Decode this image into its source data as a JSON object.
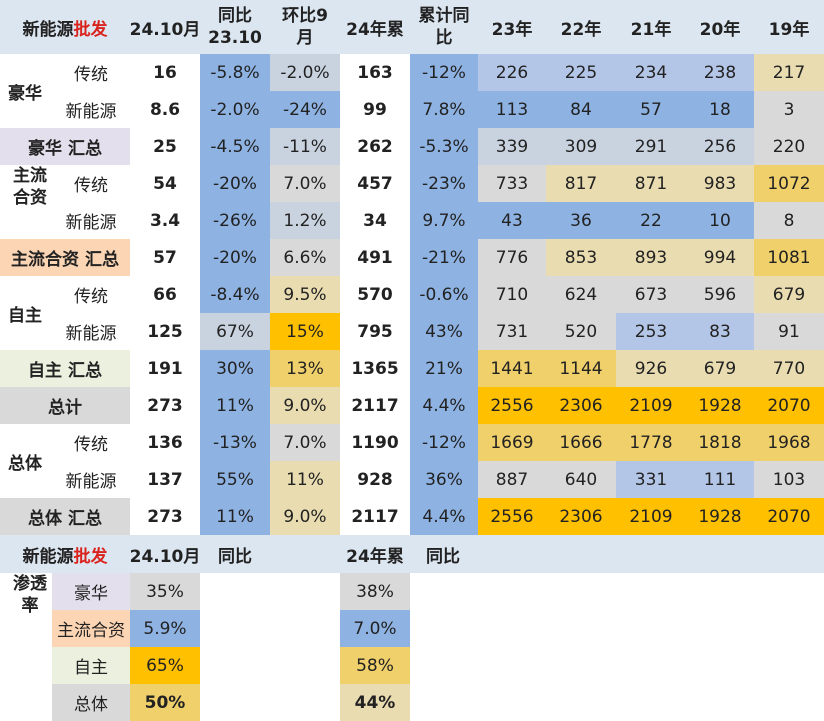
{
  "header": {
    "title_prefix": "新能源",
    "title_suffix": "批发",
    "columns": [
      "24.10月",
      "同比\n23.10",
      "环比9\n月",
      "24年累",
      "累计同\n比",
      "23年",
      "22年",
      "21年",
      "20年",
      "19年"
    ]
  },
  "rows": [
    {
      "group": "豪华",
      "sub": "传统",
      "vals": [
        "16",
        "-5.8%",
        "-2.0%",
        "163",
        "-12%",
        "226",
        "225",
        "234",
        "238",
        "217"
      ]
    },
    {
      "group": "",
      "sub": "新能源",
      "vals": [
        "8.6",
        "-2.0%",
        "-24%",
        "99",
        "7.8%",
        "113",
        "84",
        "57",
        "18",
        "3"
      ]
    },
    {
      "label": "豪华 汇总",
      "vals": [
        "25",
        "-4.5%",
        "-11%",
        "262",
        "-5.3%",
        "339",
        "309",
        "291",
        "256",
        "220"
      ]
    },
    {
      "group": "主流\n合资",
      "sub": "传统",
      "vals": [
        "54",
        "-20%",
        "7.0%",
        "457",
        "-23%",
        "733",
        "817",
        "871",
        "983",
        "1072"
      ]
    },
    {
      "group": "",
      "sub": "新能源",
      "vals": [
        "3.4",
        "-26%",
        "1.2%",
        "34",
        "9.7%",
        "43",
        "36",
        "22",
        "10",
        "8"
      ]
    },
    {
      "label": "主流合资 汇总",
      "vals": [
        "57",
        "-20%",
        "6.6%",
        "491",
        "-21%",
        "776",
        "853",
        "893",
        "994",
        "1081"
      ]
    },
    {
      "group": "自主",
      "sub": "传统",
      "vals": [
        "66",
        "-8.4%",
        "9.5%",
        "570",
        "-0.6%",
        "710",
        "624",
        "673",
        "596",
        "679"
      ]
    },
    {
      "group": "",
      "sub": "新能源",
      "vals": [
        "125",
        "67%",
        "15%",
        "795",
        "43%",
        "731",
        "520",
        "253",
        "83",
        "91"
      ]
    },
    {
      "label": "自主 汇总",
      "vals": [
        "191",
        "30%",
        "13%",
        "1365",
        "21%",
        "1441",
        "1144",
        "926",
        "679",
        "770"
      ]
    },
    {
      "label": "总计",
      "vals": [
        "273",
        "11%",
        "9.0%",
        "2117",
        "4.4%",
        "2556",
        "2306",
        "2109",
        "1928",
        "2070"
      ]
    },
    {
      "group": "总体",
      "sub": "传统",
      "vals": [
        "136",
        "-13%",
        "7.0%",
        "1190",
        "-12%",
        "1669",
        "1666",
        "1778",
        "1818",
        "1968"
      ]
    },
    {
      "group": "",
      "sub": "新能源",
      "vals": [
        "137",
        "55%",
        "11%",
        "928",
        "36%",
        "887",
        "640",
        "331",
        "111",
        "103"
      ]
    },
    {
      "label": "总体 汇总",
      "vals": [
        "273",
        "11%",
        "9.0%",
        "2117",
        "4.4%",
        "2556",
        "2306",
        "2109",
        "1928",
        "2070"
      ]
    }
  ],
  "penetration": {
    "title_prefix": "新能源",
    "title_suffix": "批发",
    "col_month": "24.10月",
    "col_yoy": "同比",
    "col_ytd": "24年累",
    "col_ytd_yoy": "同比",
    "label": "渗透\n率",
    "rows": [
      {
        "name": "豪华",
        "month": "35%",
        "ytd": "38%"
      },
      {
        "name": "主流合资",
        "month": "5.9%",
        "ytd": "7.0%"
      },
      {
        "name": "自主",
        "month": "65%",
        "ytd": "58%"
      },
      {
        "name": "总体",
        "month": "50%",
        "ytd": "44%"
      }
    ]
  },
  "colors": {
    "header_bg": "#dce6f1",
    "blue": "#8eb3e3",
    "orange": "#ffc000",
    "grey": "#d9d9d9",
    "lavender": "#e4dfec",
    "peach": "#fcd5b4",
    "mint": "#ebf1de"
  }
}
